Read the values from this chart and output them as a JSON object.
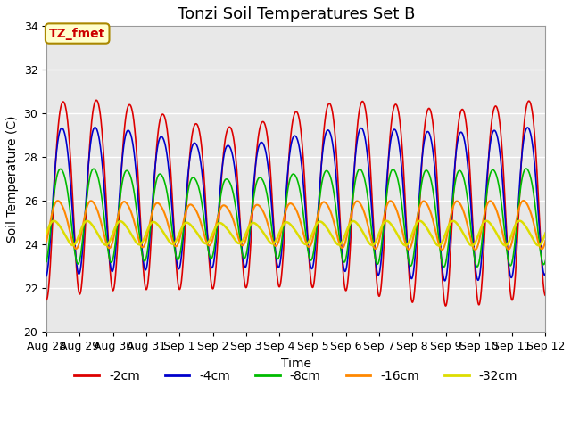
{
  "title": "Tonzi Soil Temperatures Set B",
  "xlabel": "Time",
  "ylabel": "Soil Temperature (C)",
  "ylim": [
    20,
    34
  ],
  "xlim_start": 0,
  "xlim_end": 15.0,
  "xtick_labels": [
    "Aug 28",
    "Aug 29",
    "Aug 30",
    "Aug 31",
    "Sep 1",
    "Sep 2",
    "Sep 3",
    "Sep 4",
    "Sep 5",
    "Sep 6",
    "Sep 7",
    "Sep 8",
    "Sep 9",
    "Sep 10",
    "Sep 11",
    "Sep 12"
  ],
  "xtick_positions": [
    0,
    1,
    2,
    3,
    4,
    5,
    6,
    7,
    8,
    9,
    10,
    11,
    12,
    13,
    14,
    15
  ],
  "ytick_labels": [
    "20",
    "22",
    "24",
    "26",
    "28",
    "30",
    "32",
    "34"
  ],
  "ytick_positions": [
    20,
    22,
    24,
    26,
    28,
    30,
    32,
    34
  ],
  "series": [
    {
      "label": "-2cm",
      "color": "#dd0000",
      "linewidth": 1.2,
      "amp_base": 4.5,
      "mean": 26.5,
      "phase": 0.0,
      "depth_factor": 1.0
    },
    {
      "label": "-4cm",
      "color": "#0000cc",
      "linewidth": 1.2,
      "amp_base": 3.4,
      "mean": 26.3,
      "phase": 0.18,
      "depth_factor": 0.75
    },
    {
      "label": "-8cm",
      "color": "#00bb00",
      "linewidth": 1.2,
      "amp_base": 2.2,
      "mean": 25.5,
      "phase": 0.38,
      "depth_factor": 0.5
    },
    {
      "label": "-16cm",
      "color": "#ff8800",
      "linewidth": 1.5,
      "amp_base": 1.1,
      "mean": 25.0,
      "phase": 0.8,
      "depth_factor": 0.27
    },
    {
      "label": "-32cm",
      "color": "#dddd00",
      "linewidth": 1.8,
      "amp_base": 0.55,
      "mean": 24.55,
      "phase": 1.5,
      "depth_factor": 0.15
    }
  ],
  "annotation_text": "TZ_fmet",
  "plot_bg_color": "#e8e8e8",
  "title_fontsize": 13,
  "axis_label_fontsize": 10,
  "tick_fontsize": 9,
  "legend_fontsize": 10
}
